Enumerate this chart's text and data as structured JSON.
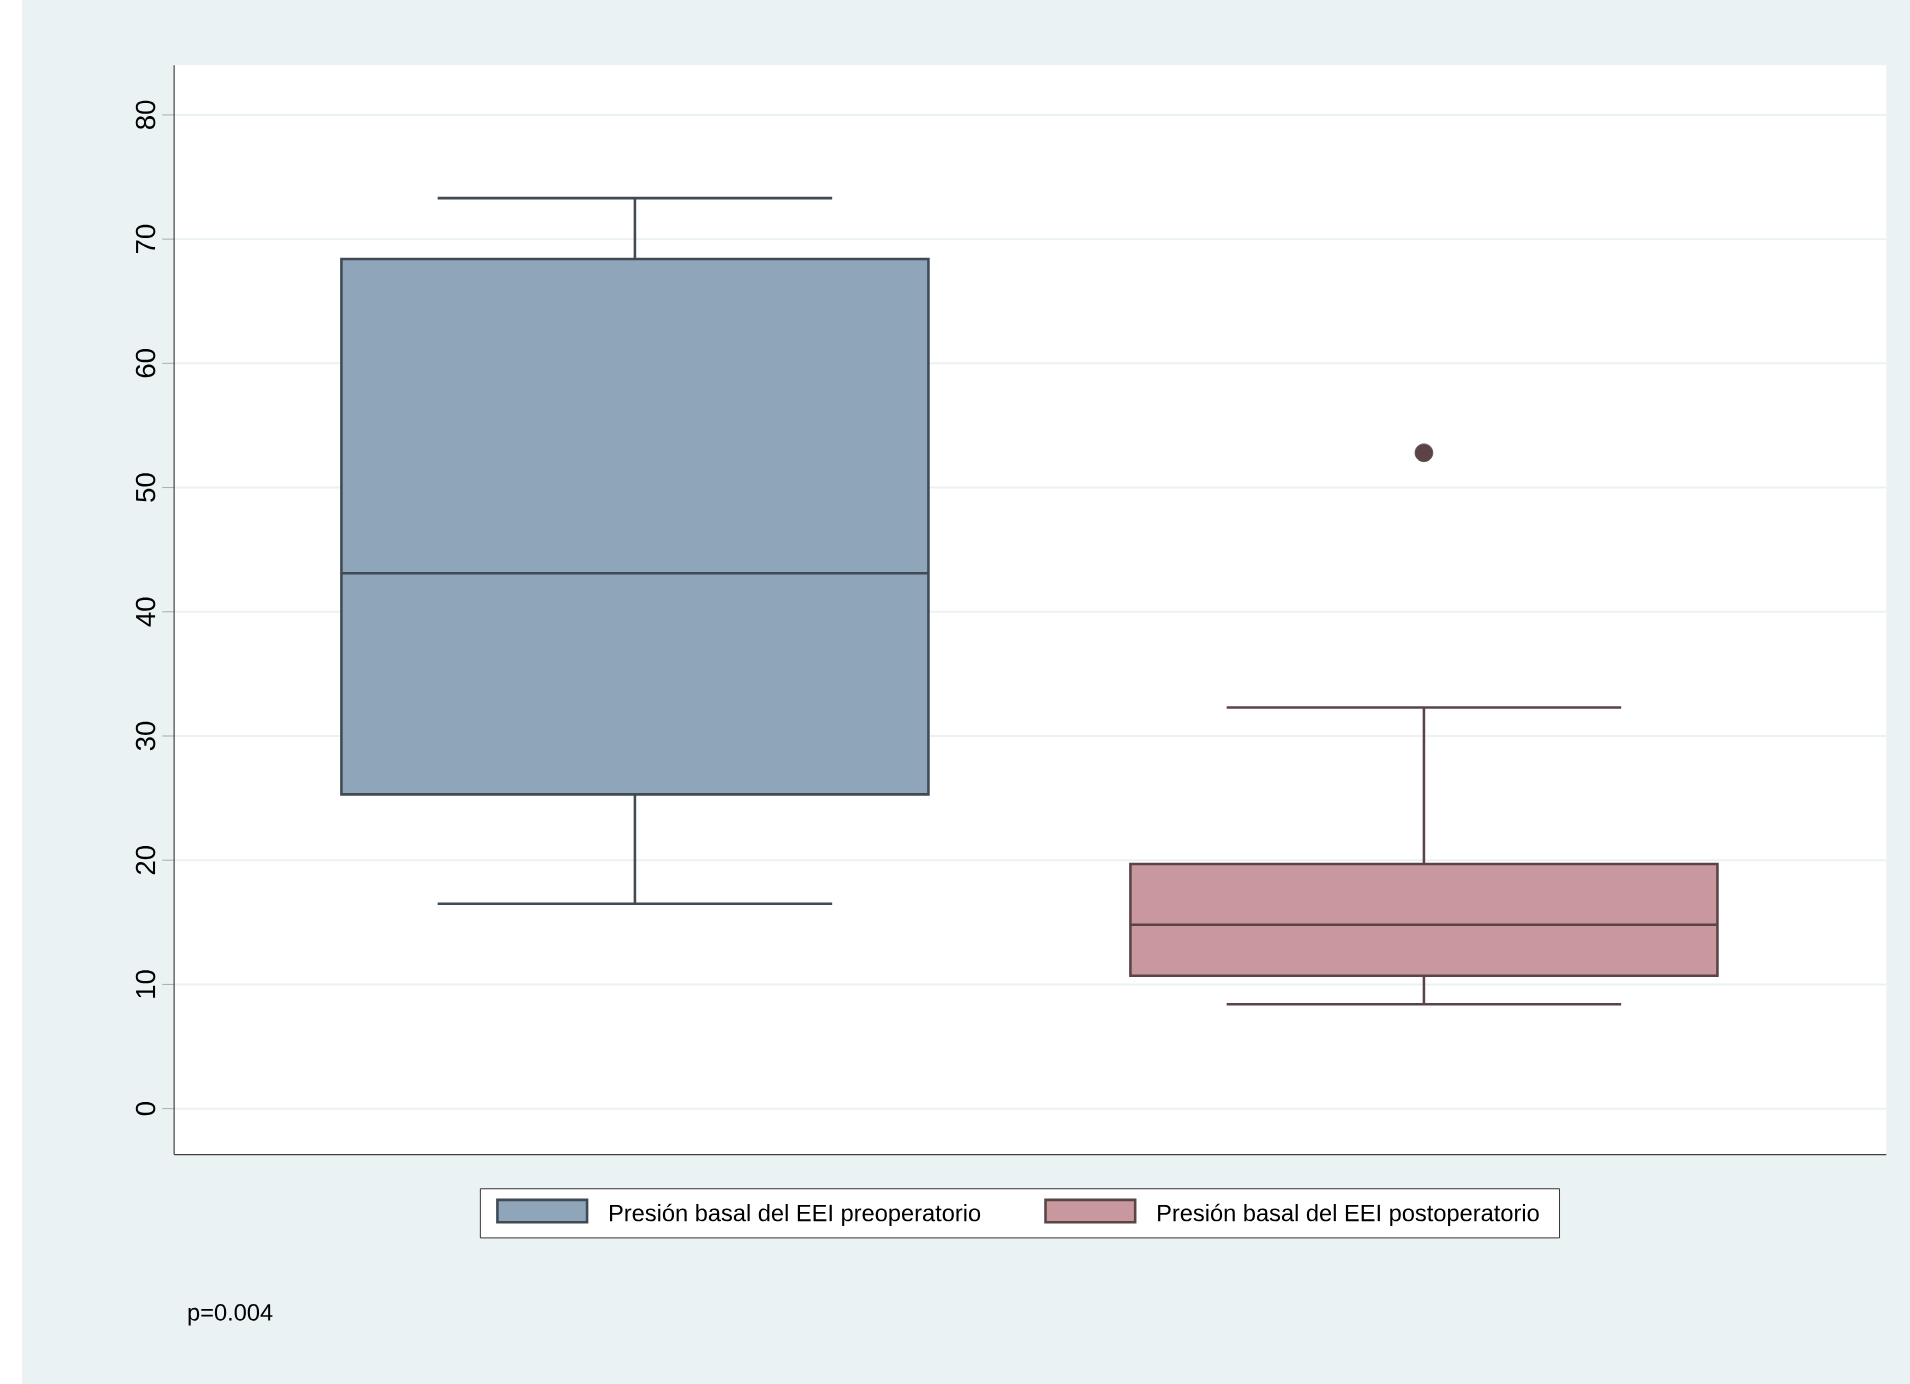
{
  "chart_data": {
    "type": "box",
    "categories": [
      null
    ],
    "series": [
      {
        "name": "Presión basal del EEI preoperatorio",
        "color": "#8ea5ba",
        "boxes": [
          {
            "low": 16.5,
            "q1": 25.3,
            "median": 43.1,
            "q3": 68.4,
            "high": 73.3
          }
        ]
      },
      {
        "name": "Presión basal del EEI postoperatorio",
        "color": "#c8989e",
        "boxes": [
          {
            "low": 8.4,
            "q1": 10.7,
            "median": 14.8,
            "q3": 19.7,
            "high": 32.3,
            "outliers": [
              52.8
            ]
          }
        ]
      }
    ],
    "ylim": [
      -3.7,
      84
    ],
    "yticks": [
      0,
      10,
      20,
      30,
      40,
      50,
      60,
      70,
      80
    ],
    "grid": "y",
    "legend": "bottom",
    "tick_labels": "y",
    "annotations": [
      "p=0.004"
    ]
  }
}
